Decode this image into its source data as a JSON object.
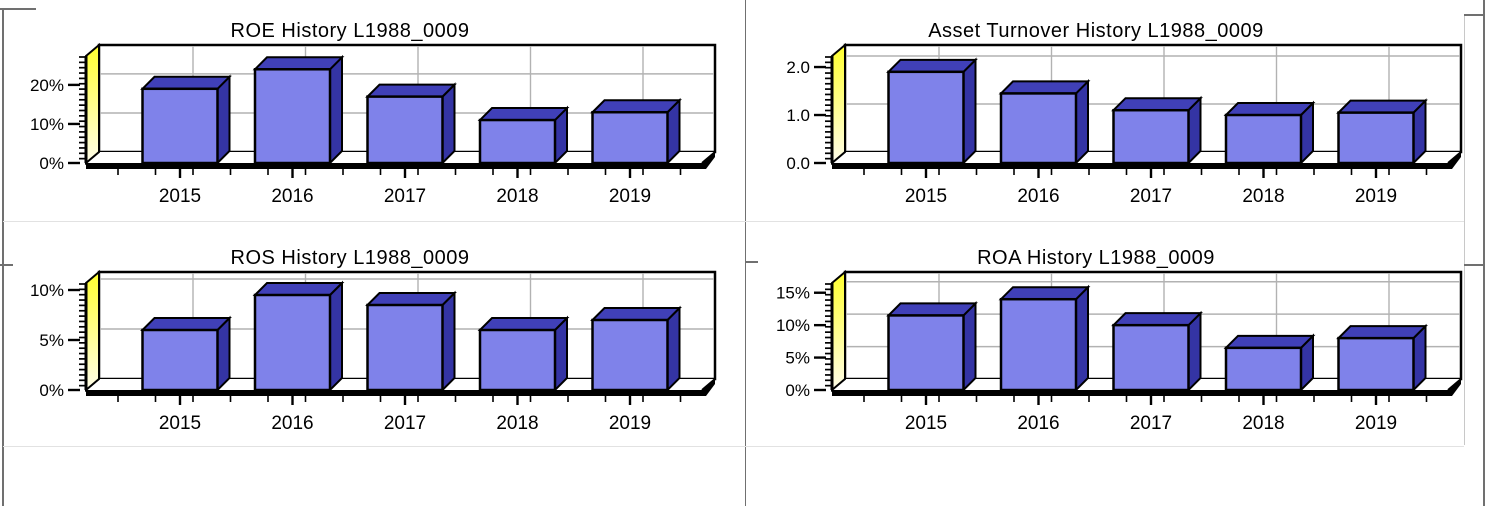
{
  "page": {
    "background": "#ffffff",
    "company_code": "L1988_0009"
  },
  "colors": {
    "bar_front": "#7f82ea",
    "bar_top": "#4040b8",
    "bar_side": "#3434a4",
    "bar_outline": "#000000",
    "wall_yellow_top": "#ffff2e",
    "wall_yellow_bottom": "#fffdea",
    "grid": "#b2b2b2",
    "frame": "#000000",
    "divider_dark": "#707070",
    "divider_light": "#e2e2e2"
  },
  "chart_data": [
    {
      "type": "bar",
      "position": "top-left",
      "title": "ROE History L1988_0009",
      "categories": [
        "2015",
        "2016",
        "2017",
        "2018",
        "2019"
      ],
      "values": [
        19,
        24,
        17,
        11,
        13
      ],
      "unit": "%",
      "xlabel": "",
      "ylabel": "",
      "y_ticks": [
        {
          "value": 0,
          "label": "0%"
        },
        {
          "value": 10,
          "label": "10%"
        },
        {
          "value": 20,
          "label": "20%"
        }
      ],
      "ylim": [
        0,
        27.4
      ],
      "grid": true,
      "legend": "none"
    },
    {
      "type": "bar",
      "position": "top-right",
      "title": "Asset Turnover History L1988_0009",
      "categories": [
        "2015",
        "2016",
        "2017",
        "2018",
        "2019"
      ],
      "values": [
        1.9,
        1.45,
        1.1,
        1.0,
        1.05
      ],
      "unit": "",
      "xlabel": "",
      "ylabel": "",
      "y_ticks": [
        {
          "value": 0,
          "label": "0.0"
        },
        {
          "value": 1,
          "label": "1.0"
        },
        {
          "value": 2,
          "label": "2.0"
        }
      ],
      "ylim": [
        0,
        2.23
      ],
      "grid": true,
      "legend": "none"
    },
    {
      "type": "bar",
      "position": "bottom-left",
      "title": "ROS History L1988_0009",
      "categories": [
        "2015",
        "2016",
        "2017",
        "2018",
        "2019"
      ],
      "values": [
        6,
        9.5,
        8.5,
        6,
        7
      ],
      "unit": "%",
      "xlabel": "",
      "ylabel": "",
      "y_ticks": [
        {
          "value": 0,
          "label": "0%"
        },
        {
          "value": 5,
          "label": "5%"
        },
        {
          "value": 10,
          "label": "10%"
        }
      ],
      "ylim": [
        0,
        10.7
      ],
      "grid": true,
      "legend": "none"
    },
    {
      "type": "bar",
      "position": "bottom-right",
      "title": "ROA History L1988_0009",
      "categories": [
        "2015",
        "2016",
        "2017",
        "2018",
        "2019"
      ],
      "values": [
        11.5,
        14,
        10,
        6.5,
        8
      ],
      "unit": "%",
      "xlabel": "",
      "ylabel": "",
      "y_ticks": [
        {
          "value": 0,
          "label": "0%"
        },
        {
          "value": 5,
          "label": "5%"
        },
        {
          "value": 10,
          "label": "10%"
        },
        {
          "value": 15,
          "label": "15%"
        }
      ],
      "ylim": [
        0,
        16.5
      ],
      "grid": true,
      "legend": "none"
    }
  ]
}
